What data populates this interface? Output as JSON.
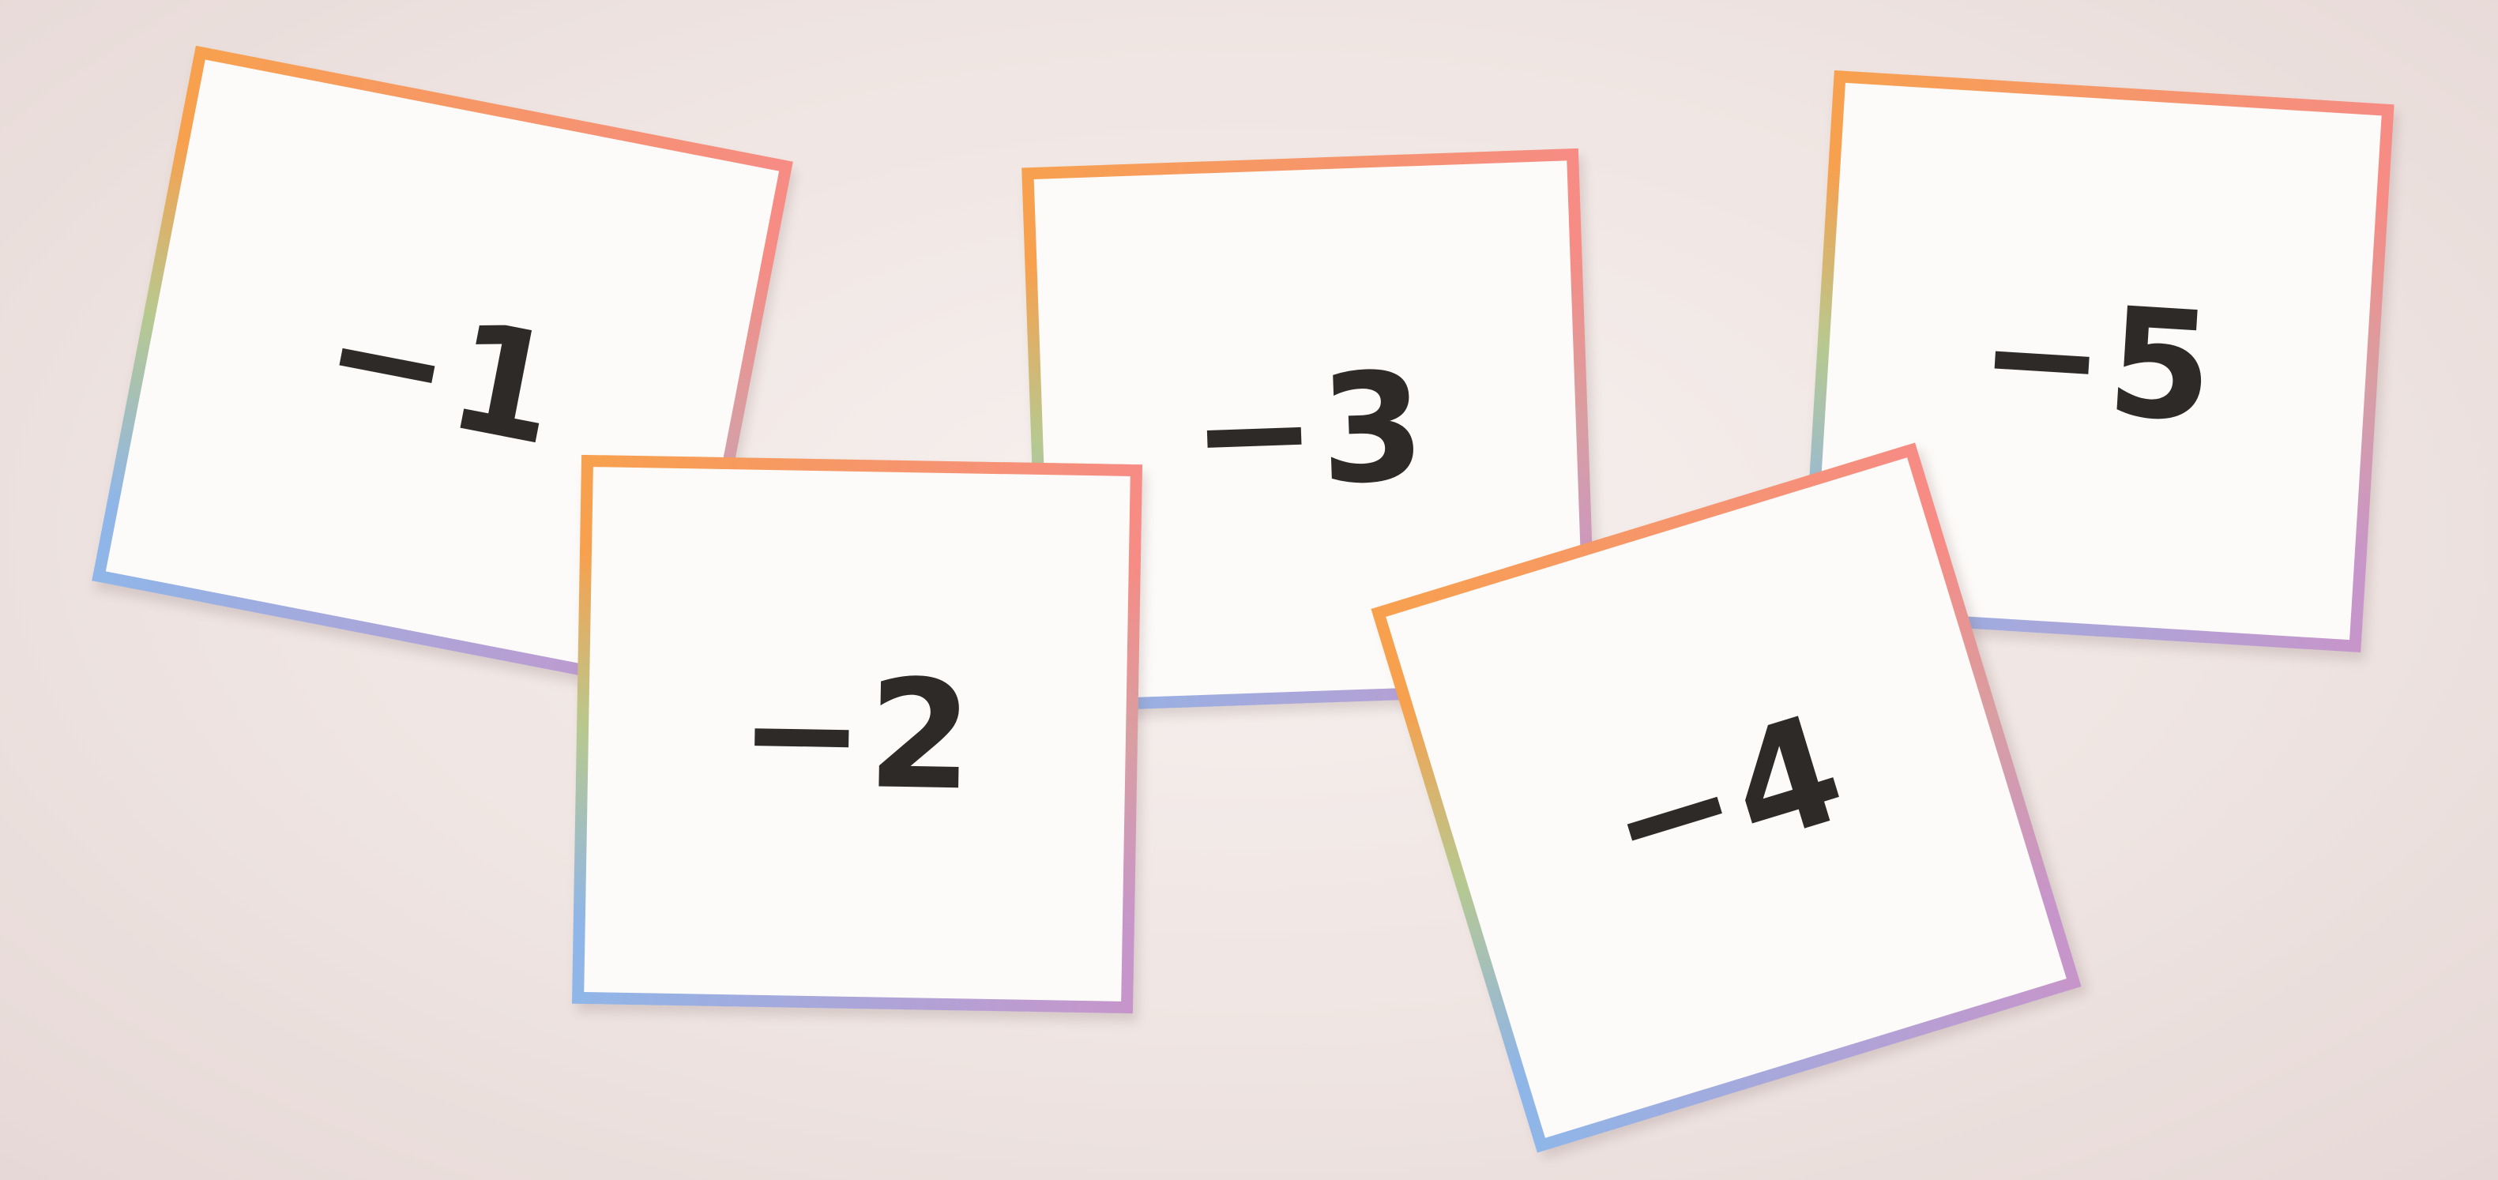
{
  "cards": [
    {
      "value": "−1"
    },
    {
      "value": "−2"
    },
    {
      "value": "−3"
    },
    {
      "value": "−4"
    },
    {
      "value": "−5"
    }
  ]
}
